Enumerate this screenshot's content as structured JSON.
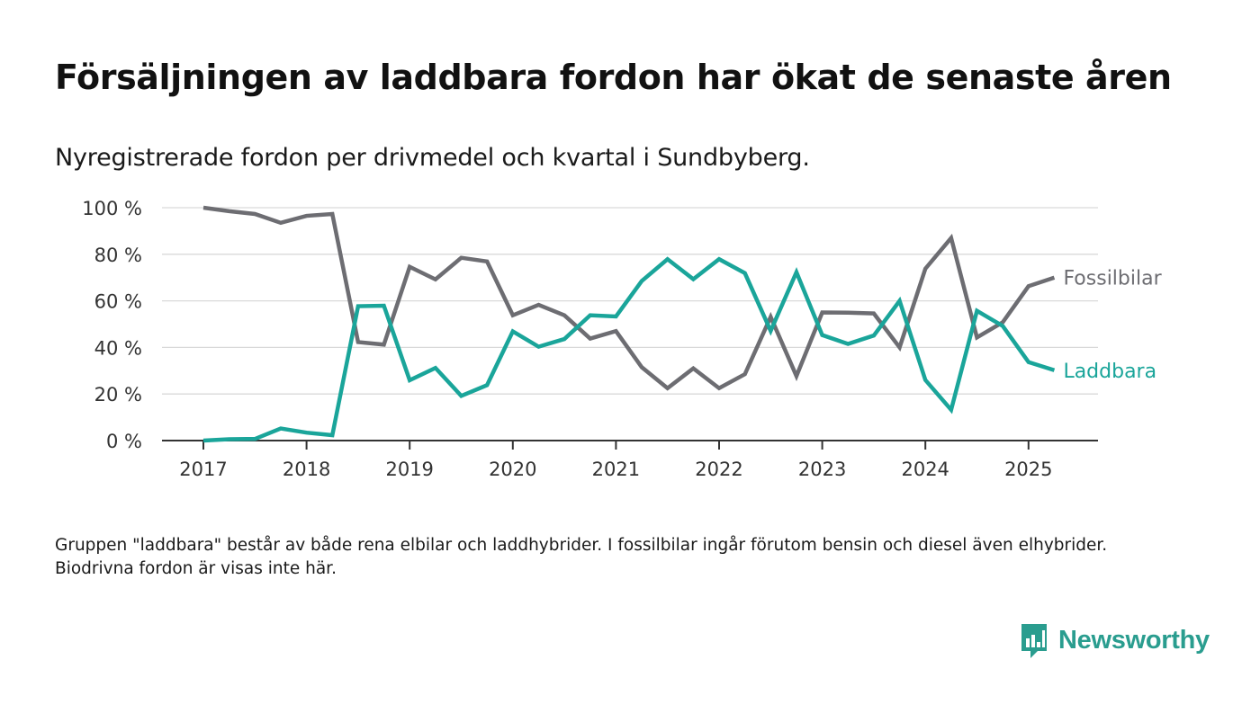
{
  "title": "Försäljningen av laddbara fordon har ökat de senaste åren",
  "subtitle": "Nyregistrerade fordon per drivmedel och kvartal i Sundbyberg.",
  "note": "Gruppen \"laddbara\" består av både rena elbilar och laddhybrider. I fossilbilar ingår förutom bensin och diesel även elhybrider. Biodrivna fordon är visas inte här.",
  "brand": {
    "name": "Newsworthy",
    "icon": "newsworthy-chart-bubble-icon",
    "color": "#2a9d8f"
  },
  "chart_data": {
    "type": "line",
    "x_tick_labels": [
      "2017",
      "2018",
      "2019",
      "2020",
      "2021",
      "2022",
      "2023",
      "2024",
      "2025"
    ],
    "y_tick_labels": [
      "0 %",
      "20 %",
      "40 %",
      "60 %",
      "80 %",
      "100 %"
    ],
    "ylim": [
      0,
      100
    ],
    "xlim": [
      2016.6,
      2025.7
    ],
    "grid": true,
    "legend": "direct labels at right end of lines",
    "x": [
      2017.0,
      2017.25,
      2017.5,
      2017.75,
      2018.0,
      2018.25,
      2018.5,
      2018.75,
      2019.0,
      2019.25,
      2019.5,
      2019.75,
      2020.0,
      2020.25,
      2020.5,
      2020.75,
      2021.0,
      2021.25,
      2021.5,
      2021.75,
      2022.0,
      2022.25,
      2022.5,
      2022.75,
      2023.0,
      2023.25,
      2023.5,
      2023.75,
      2024.0,
      2024.25,
      2024.5,
      2024.75,
      2025.0,
      2025.25
    ],
    "series": [
      {
        "name": "Fossilbilar",
        "color": "#6d6d72",
        "values": [
          100,
          98.5,
          97.3,
          93.5,
          96.5,
          97.3,
          42.3,
          41.2,
          74.6,
          69.2,
          78.5,
          76.9,
          53.8,
          58.3,
          53.8,
          43.8,
          47.0,
          31.5,
          22.5,
          31.0,
          22.5,
          28.5,
          53.1,
          27.7,
          55.0,
          54.9,
          54.6,
          40.0,
          73.8,
          87.0,
          44.3,
          50.8,
          66.3,
          70.0
        ]
      },
      {
        "name": "Laddbara",
        "color": "#1aa59a",
        "values": [
          0,
          0.6,
          0.7,
          5.2,
          3.4,
          2.3,
          57.7,
          57.9,
          25.9,
          31.2,
          19.2,
          23.8,
          46.9,
          40.3,
          43.6,
          53.8,
          53.3,
          68.5,
          77.9,
          69.3,
          77.9,
          71.9,
          47.1,
          72.3,
          45.3,
          41.5,
          45.1,
          60.0,
          26.0,
          13.2,
          55.7,
          49.2,
          33.7,
          30.2
        ]
      }
    ]
  }
}
